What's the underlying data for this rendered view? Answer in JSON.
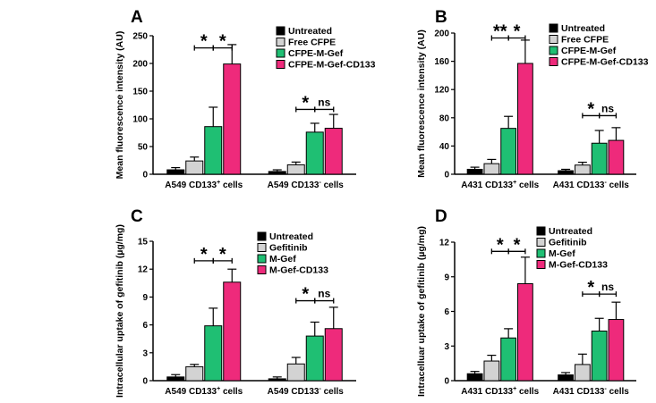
{
  "colors": {
    "untreated": "#000000",
    "free": "#d3d3d3",
    "mgef": "#1fbf73",
    "cd133": "#ee2a7b",
    "axis": "#000000"
  },
  "chart_data": [
    {
      "type": "bar",
      "panel_label": "A",
      "ylabel": "Mean fluorescence intensity (AU)",
      "ylim": [
        0,
        250
      ],
      "yticks": [
        "0",
        "50",
        "100",
        "150",
        "200",
        "250"
      ],
      "groups": [
        {
          "main": "A549  CD133",
          "sup": "+",
          "tail": " cells"
        },
        {
          "main": "A549  CD133",
          "sup": "-",
          "tail": " cells"
        }
      ],
      "legend": [
        "Untreated",
        "Free CFPE",
        "CFPE-M-Gef",
        "CFPE-M-Gef-CD133"
      ],
      "series": [
        {
          "name": "Untreated",
          "values": [
            8,
            5
          ],
          "errors": [
            4,
            3
          ]
        },
        {
          "name": "Free CFPE",
          "values": [
            24,
            17
          ],
          "errors": [
            7,
            5
          ]
        },
        {
          "name": "CFPE-M-Gef",
          "values": [
            86,
            76
          ],
          "errors": [
            35,
            16
          ]
        },
        {
          "name": "CFPE-M-Gef-CD133",
          "values": [
            199,
            83
          ],
          "errors": [
            35,
            25
          ]
        }
      ],
      "significance": [
        {
          "label": "*",
          "group": 0,
          "from": 1,
          "to": 2,
          "y": 228
        },
        {
          "label": "*",
          "group": 0,
          "from": 2,
          "to": 3,
          "y": 228
        },
        {
          "label": "*",
          "group": 1,
          "from": 1,
          "to": 2,
          "y": 117
        },
        {
          "label": "ns",
          "group": 1,
          "from": 2,
          "to": 3,
          "y": 117
        }
      ]
    },
    {
      "type": "bar",
      "panel_label": "B",
      "ylabel": "Mean fluorescence intensity (AU)",
      "ylim": [
        0,
        200
      ],
      "yticks": [
        "0",
        "40",
        "80",
        "120",
        "160",
        "200"
      ],
      "groups": [
        {
          "main": "A431  CD133",
          "sup": "+",
          "tail": " cells"
        },
        {
          "main": "A431  CD133",
          "sup": "-",
          "tail": " cells"
        }
      ],
      "legend": [
        "Untreated",
        "Free CFPE",
        "CFPE-M-Gef",
        "CFPE-M-Gef-CD133"
      ],
      "series": [
        {
          "name": "Untreated",
          "values": [
            7,
            5
          ],
          "errors": [
            3,
            2
          ]
        },
        {
          "name": "Free CFPE",
          "values": [
            15,
            13
          ],
          "errors": [
            6,
            4
          ]
        },
        {
          "name": "CFPE-M-Gef",
          "values": [
            65,
            44
          ],
          "errors": [
            17,
            18
          ]
        },
        {
          "name": "CFPE-M-Gef-CD133",
          "values": [
            157,
            48
          ],
          "errors": [
            33,
            18
          ]
        }
      ],
      "significance": [
        {
          "label": "**",
          "group": 0,
          "from": 1,
          "to": 2,
          "y": 193
        },
        {
          "label": "*",
          "group": 0,
          "from": 2,
          "to": 3,
          "y": 193
        },
        {
          "label": "*",
          "group": 1,
          "from": 1,
          "to": 2,
          "y": 83
        },
        {
          "label": "ns",
          "group": 1,
          "from": 2,
          "to": 3,
          "y": 83
        }
      ]
    },
    {
      "type": "bar",
      "panel_label": "C",
      "ylabel": "Intracellular uptake of gefitinib (µg/mg)",
      "ylim": [
        0,
        15
      ],
      "yticks": [
        "0",
        "3",
        "6",
        "9",
        "12",
        "15"
      ],
      "groups": [
        {
          "main": "A549  CD133",
          "sup": "+",
          "tail": " cells"
        },
        {
          "main": "A549  CD133",
          "sup": "-",
          "tail": " cells"
        }
      ],
      "legend": [
        "Untreated",
        "Gefitinib",
        "M-Gef",
        "M-Gef-CD133"
      ],
      "series": [
        {
          "name": "Untreated",
          "values": [
            0.4,
            0.2
          ],
          "errors": [
            0.25,
            0.2
          ]
        },
        {
          "name": "Gefitinib",
          "values": [
            1.5,
            1.8
          ],
          "errors": [
            0.25,
            0.7
          ]
        },
        {
          "name": "M-Gef",
          "values": [
            5.9,
            4.8
          ],
          "errors": [
            1.9,
            1.5
          ]
        },
        {
          "name": "M-Gef-CD133",
          "values": [
            10.6,
            5.6
          ],
          "errors": [
            1.4,
            2.3
          ]
        }
      ],
      "significance": [
        {
          "label": "*",
          "group": 0,
          "from": 1,
          "to": 2,
          "y": 12.9
        },
        {
          "label": "*",
          "group": 0,
          "from": 2,
          "to": 3,
          "y": 12.9
        },
        {
          "label": "*",
          "group": 1,
          "from": 1,
          "to": 2,
          "y": 8.6
        },
        {
          "label": "ns",
          "group": 1,
          "from": 2,
          "to": 3,
          "y": 8.6
        }
      ]
    },
    {
      "type": "bar",
      "panel_label": "D",
      "ylabel": "Intracelluar uptake of gefitinib (µg/mg)",
      "ylim": [
        0,
        12
      ],
      "yticks": [
        "0",
        "3",
        "6",
        "9",
        "12"
      ],
      "groups": [
        {
          "main": "A431  CD133",
          "sup": "+",
          "tail": " cells"
        },
        {
          "main": "A431  CD133",
          "sup": "-",
          "tail": " cells"
        }
      ],
      "legend": [
        "Untreated",
        "Gefitinib",
        "M-Gef",
        "M-Gef-CD133"
      ],
      "series": [
        {
          "name": "Untreated",
          "values": [
            0.6,
            0.5
          ],
          "errors": [
            0.2,
            0.2
          ]
        },
        {
          "name": "Gefitinib",
          "values": [
            1.7,
            1.4
          ],
          "errors": [
            0.5,
            0.9
          ]
        },
        {
          "name": "M-Gef",
          "values": [
            3.7,
            4.3
          ],
          "errors": [
            0.8,
            1.1
          ]
        },
        {
          "name": "M-Gef-CD133",
          "values": [
            8.4,
            5.3
          ],
          "errors": [
            2.3,
            1.5
          ]
        }
      ],
      "significance": [
        {
          "label": "*",
          "group": 0,
          "from": 1,
          "to": 2,
          "y": 11.2
        },
        {
          "label": "*",
          "group": 0,
          "from": 2,
          "to": 3,
          "y": 11.2
        },
        {
          "label": "*",
          "group": 1,
          "from": 1,
          "to": 2,
          "y": 7.5
        },
        {
          "label": "ns",
          "group": 1,
          "from": 2,
          "to": 3,
          "y": 7.5
        }
      ]
    }
  ]
}
